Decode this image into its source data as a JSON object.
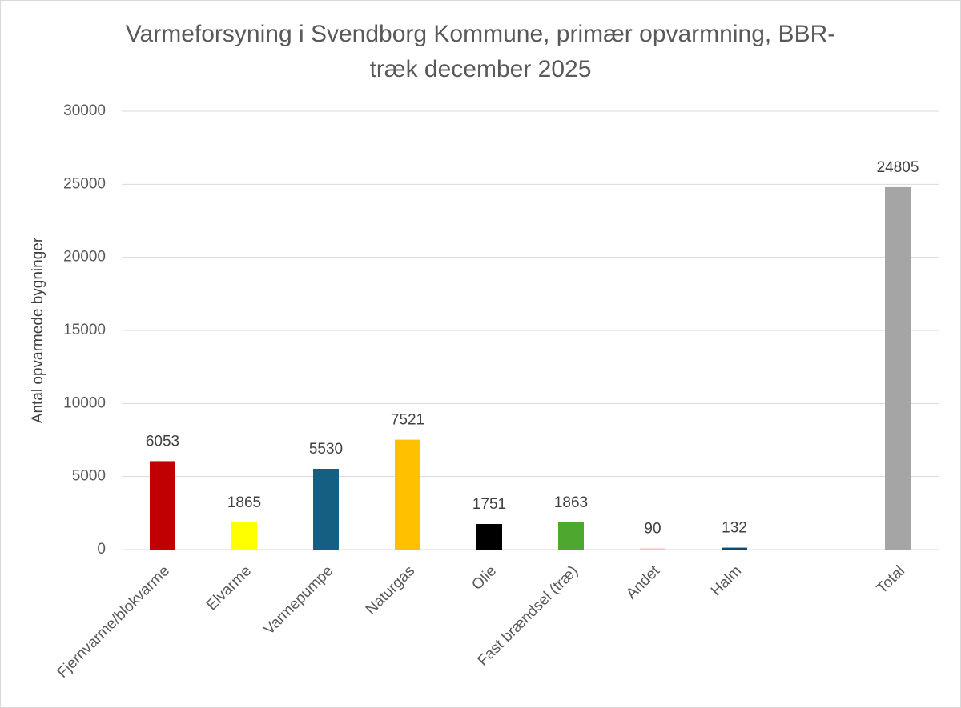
{
  "chart_data": {
    "type": "bar",
    "title": [
      "Varmeforsyning i Svendborg Kommune, primær opvarmning, BBR-",
      "træk december 2025"
    ],
    "y_label": "Antal opvarmede bygninger",
    "categories": [
      "Fjernvarme/blokvarme",
      "Elvarme",
      "Varmepumpe",
      "Naturgas",
      "Olie",
      "Fast brændsel (træ)",
      "Andet",
      "Halm",
      null,
      "Total"
    ],
    "values": [
      6053,
      1865,
      5530,
      7521,
      1751,
      1863,
      90,
      132,
      null,
      24805
    ],
    "colors": [
      "#c00000",
      "#ffff00",
      "#156082",
      "#ffc000",
      "#000000",
      "#4ea72e",
      "#f4c7c3",
      "#0e4a6e",
      null,
      "#a5a5a5"
    ],
    "ylim": [
      0,
      30000
    ],
    "yticks": [
      0,
      5000,
      10000,
      15000,
      20000,
      25000,
      30000
    ],
    "grid": true
  }
}
